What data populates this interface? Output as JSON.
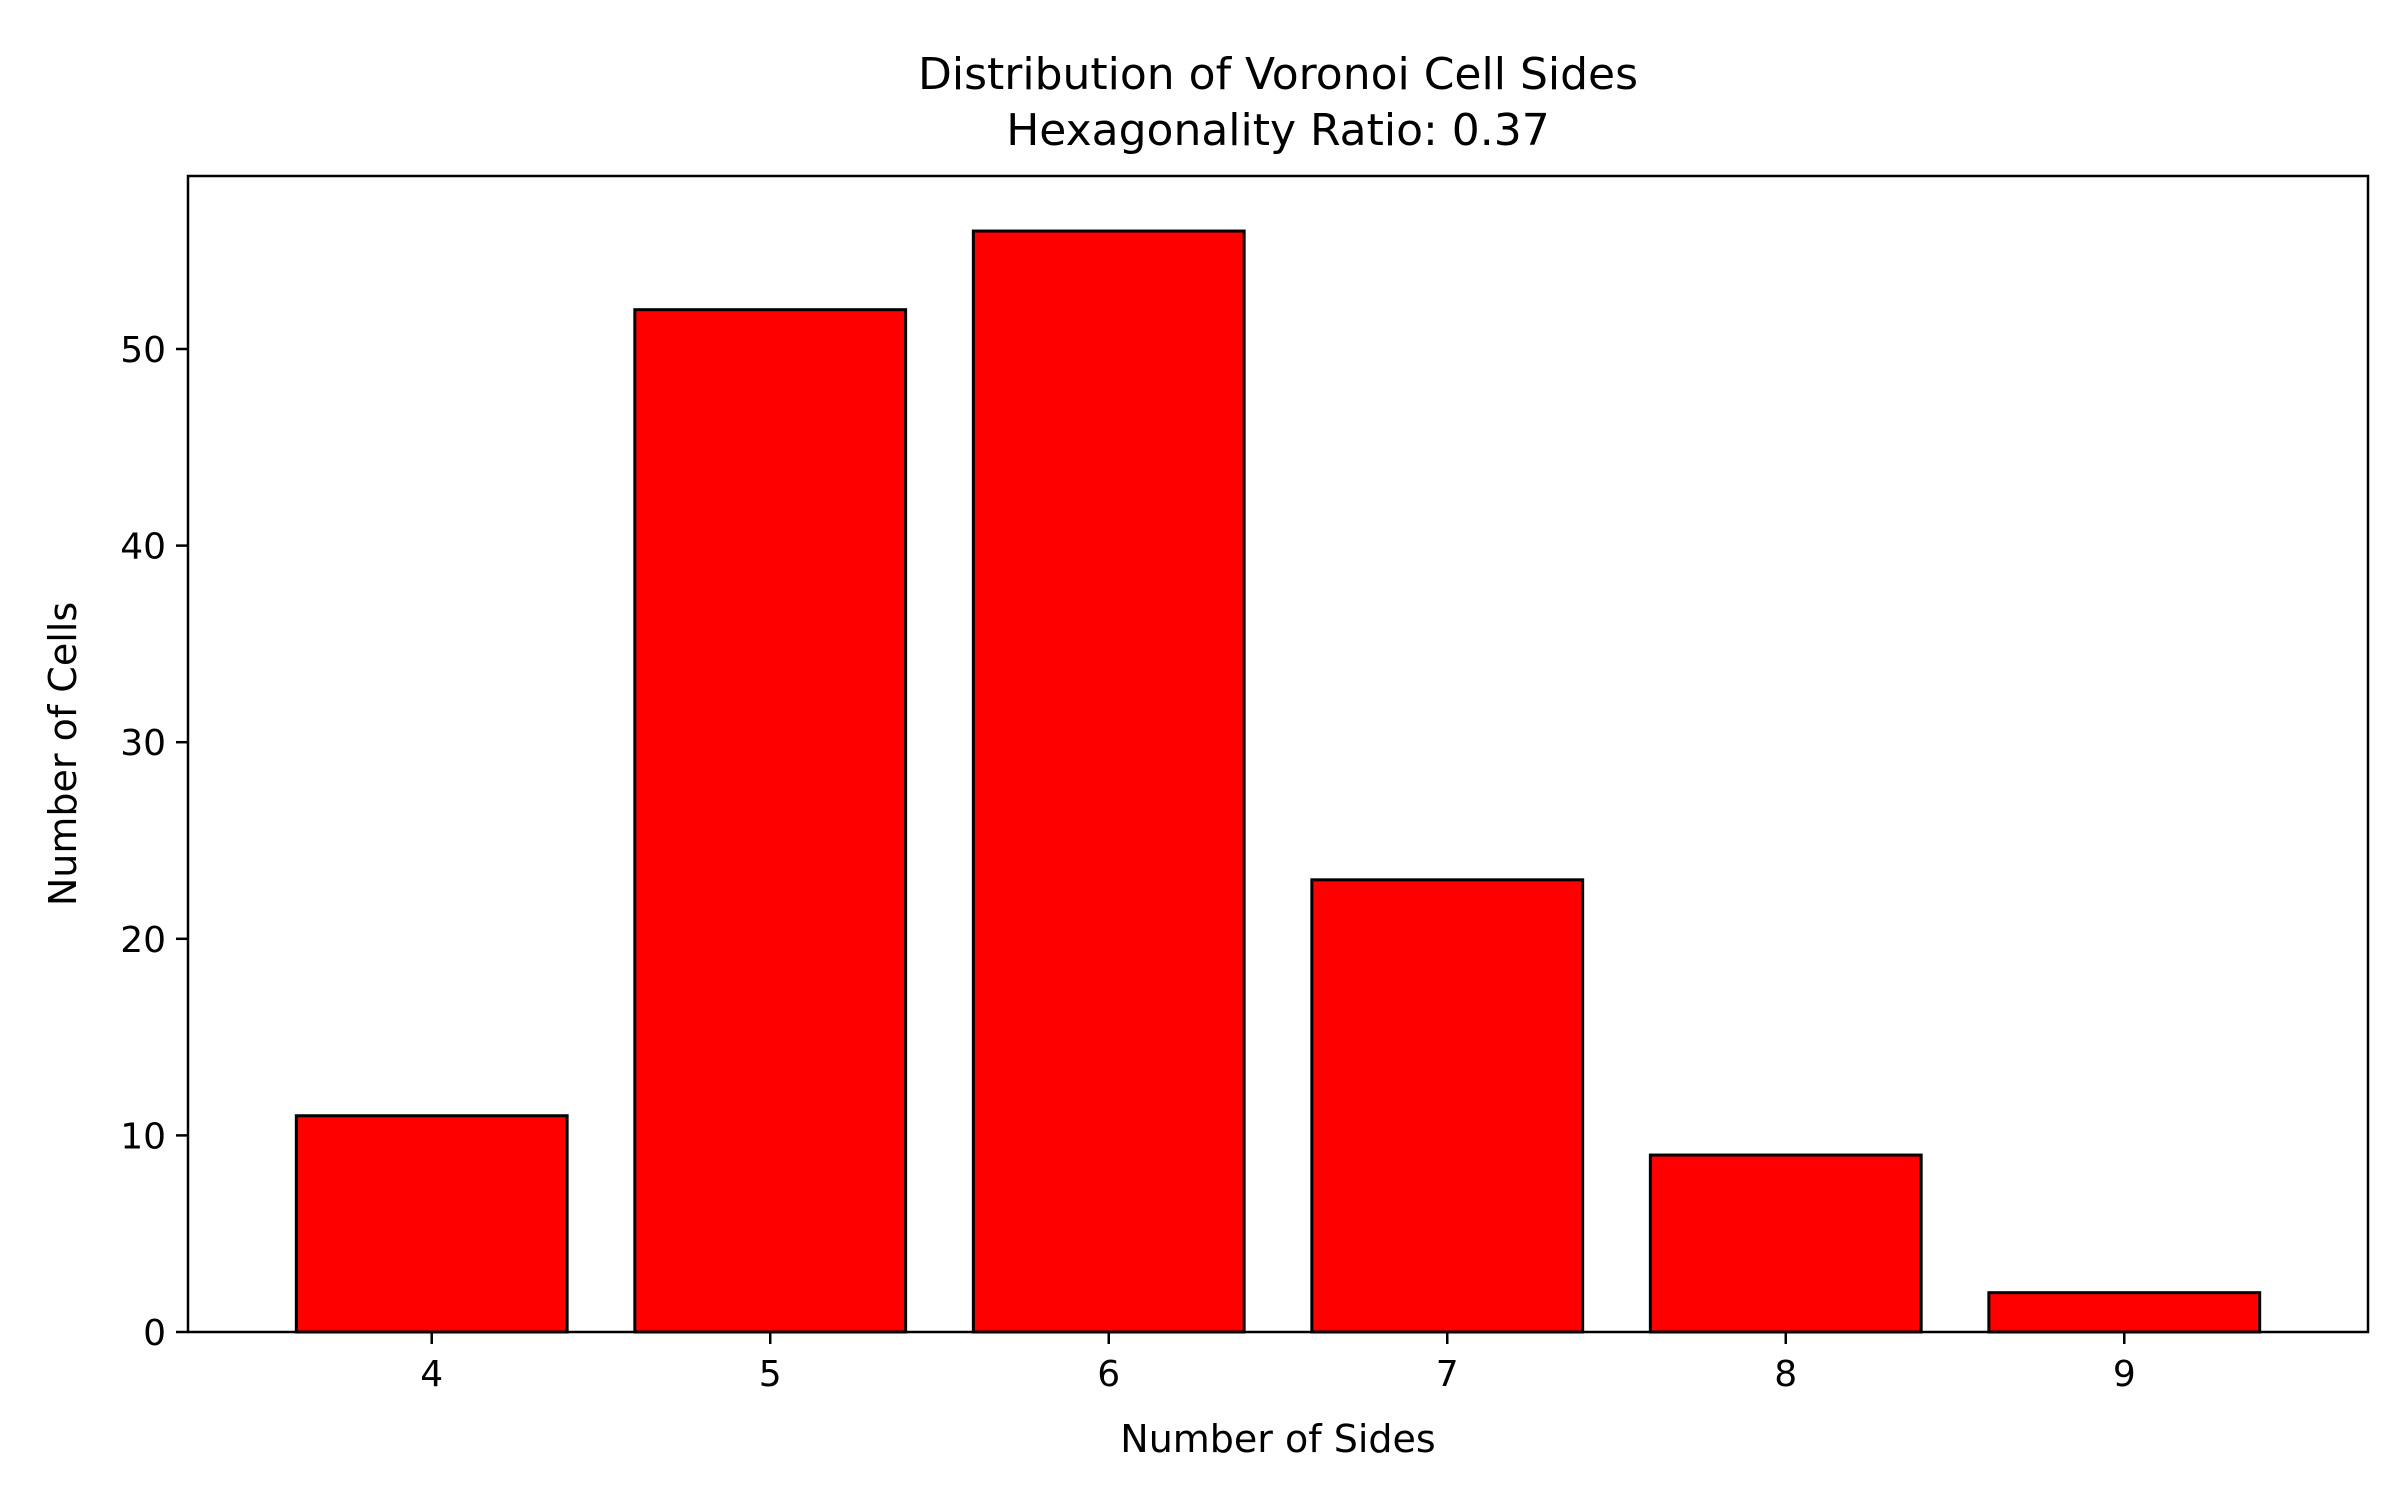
{
  "chart_data": {
    "type": "bar",
    "title": "Distribution of Voronoi Cell Sides",
    "subtitle": "Hexagonality Ratio: 0.37",
    "xlabel": "Number of Sides",
    "ylabel": "Number of Cells",
    "categories": [
      "4",
      "5",
      "6",
      "7",
      "8",
      "9"
    ],
    "values": [
      11,
      52,
      56,
      23,
      9,
      2
    ],
    "ylim": [
      0,
      58.8
    ],
    "yticks": [
      0,
      10,
      20,
      30,
      40,
      50
    ],
    "grid": false,
    "bar_color": "#ff0000",
    "bar_edge_color": "#000000"
  }
}
